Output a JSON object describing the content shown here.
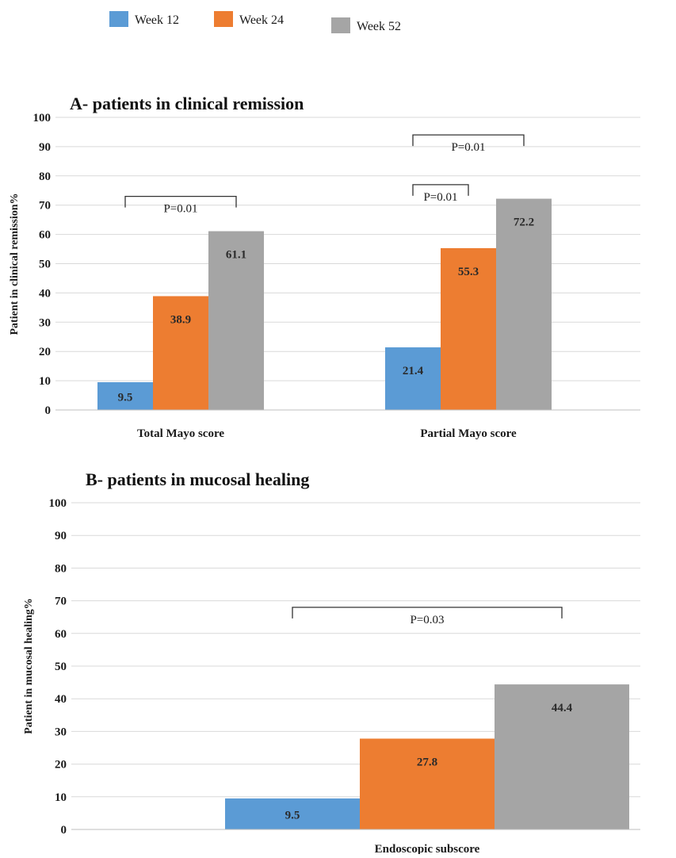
{
  "legend": [
    {
      "name": "Week 12",
      "color": "#5B9BD5"
    },
    {
      "name": "Week 24",
      "color": "#ED7D31"
    },
    {
      "name": "Week 52",
      "color": "#A5A5A5"
    }
  ],
  "chart_data": [
    {
      "type": "bar",
      "title": "A- patients in clinical remission",
      "ylabel": "Patient in clinical remission%",
      "xlabel": "",
      "ylim": [
        0,
        100
      ],
      "yticks": [
        0,
        10,
        20,
        30,
        40,
        50,
        60,
        70,
        80,
        90,
        100
      ],
      "grid": true,
      "categories": [
        "Total Mayo score",
        "Partial Mayo score"
      ],
      "series": [
        {
          "name": "Week 12",
          "values": [
            9.5,
            21.4
          ],
          "labels": [
            "9.5",
            "21.4"
          ]
        },
        {
          "name": "Week 24",
          "values": [
            38.9,
            55.3
          ],
          "labels": [
            "38.9",
            "55.3"
          ]
        },
        {
          "name": "Week 52",
          "values": [
            61.1,
            72.2
          ],
          "labels": [
            "61.1",
            "72.2"
          ]
        }
      ],
      "annotations": [
        {
          "text": "P=0.01",
          "category": 0,
          "from_series": 0,
          "to_series": 2,
          "level": 73
        },
        {
          "text": "P=0.01",
          "category": 1,
          "from_series": 0,
          "to_series": 1,
          "level": 77
        },
        {
          "text": "P=0.01",
          "category": 1,
          "from_series": 0,
          "to_series": 2,
          "level": 94
        }
      ]
    },
    {
      "type": "bar",
      "title": "B- patients in mucosal healing",
      "ylabel": "Patient in mucosal healing%",
      "xlabel": "",
      "ylim": [
        0,
        100
      ],
      "yticks": [
        0,
        10,
        20,
        30,
        40,
        50,
        60,
        70,
        80,
        90,
        100
      ],
      "grid": true,
      "categories": [
        "Endoscopic subscore"
      ],
      "series": [
        {
          "name": "Week 12",
          "values": [
            9.5
          ],
          "labels": [
            "9.5"
          ]
        },
        {
          "name": "Week 24",
          "values": [
            27.8
          ],
          "labels": [
            "27.8"
          ]
        },
        {
          "name": "Week 52",
          "values": [
            44.4
          ],
          "labels": [
            "44.4"
          ]
        }
      ],
      "annotations": [
        {
          "text": "P=0.03",
          "category": 0,
          "from_series": 0,
          "to_series": 2,
          "level": 68
        }
      ]
    }
  ]
}
